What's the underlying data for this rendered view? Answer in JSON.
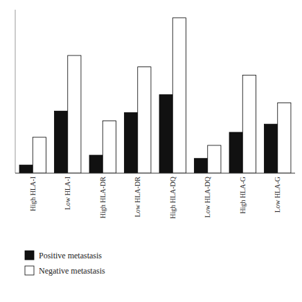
{
  "chart_data": {
    "type": "bar",
    "categories": [
      "High HLA-I",
      "Low HLA-I",
      "High HLA-DR",
      "Low HLA-DR",
      "High HLA-DQ",
      "Low HLA-DQ",
      "High HLA-G",
      "Low HLA-G"
    ],
    "series": [
      {
        "name": "Positive metastasis",
        "color": "#111111",
        "values": [
          5,
          38,
          11,
          37,
          48,
          9,
          25,
          30
        ]
      },
      {
        "name": "Negative metastasis",
        "color": "#ffffff",
        "values": [
          22,
          72,
          32,
          65,
          95,
          17,
          60,
          43
        ]
      }
    ],
    "ylim": [
      0,
      100
    ],
    "grid": false,
    "legend": "bottom",
    "tick_labels": "x"
  }
}
